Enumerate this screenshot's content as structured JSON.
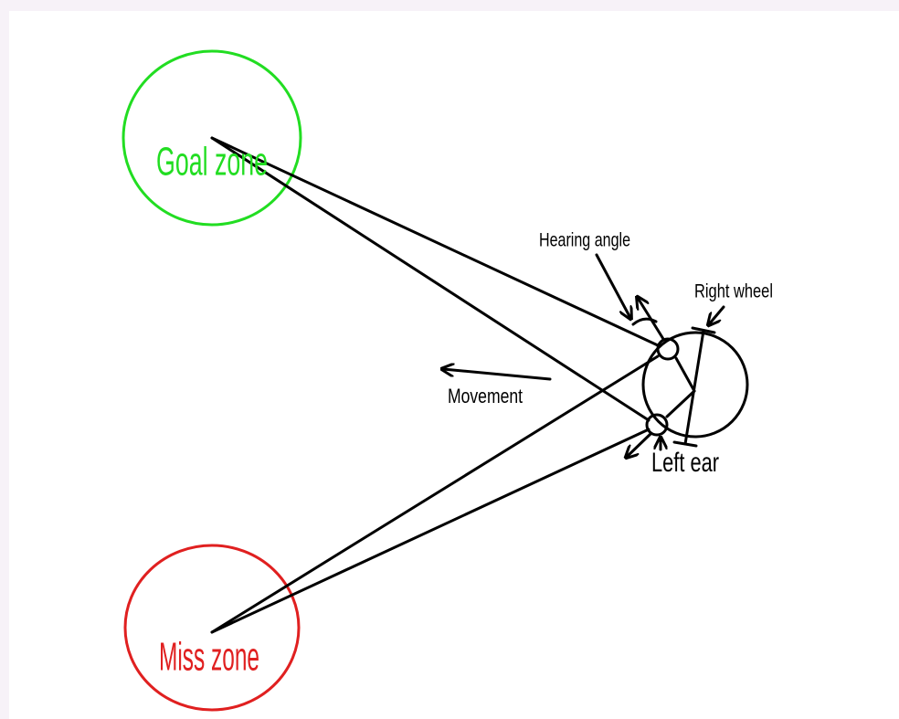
{
  "labels": {
    "goal_zone": "Goal zone",
    "miss_zone": "Miss zone",
    "hearing_angle": "Hearing angle",
    "right_wheel": "Right wheel",
    "movement": "Movement",
    "left_ear": "Left ear"
  }
}
